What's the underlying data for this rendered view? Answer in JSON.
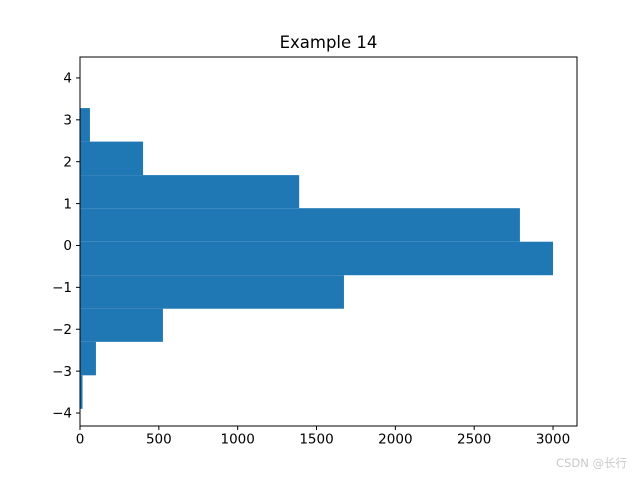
{
  "chart_data": {
    "type": "bar",
    "orientation": "horizontal",
    "title": "Example 14",
    "xlabel": "",
    "ylabel": "",
    "grid": false,
    "legend": false,
    "bar_color": "#1f77b4",
    "bin_edges": [
      3.28,
      2.48,
      1.68,
      0.89,
      0.09,
      -0.71,
      -1.51,
      -2.3,
      -3.1,
      -3.9
    ],
    "counts": [
      63,
      400,
      1390,
      2790,
      3000,
      1674,
      526,
      101,
      16
    ],
    "xlim": [
      0,
      3152
    ],
    "ylim": [
      -4.31,
      4.5
    ],
    "xticks": [
      0,
      500,
      1000,
      1500,
      2000,
      2500,
      3000
    ],
    "yticks": [
      4,
      3,
      2,
      1,
      0,
      -1,
      -2,
      -3,
      -4
    ]
  },
  "watermark": {
    "text": "CSDN @长行",
    "color": "#c9c9c9"
  }
}
